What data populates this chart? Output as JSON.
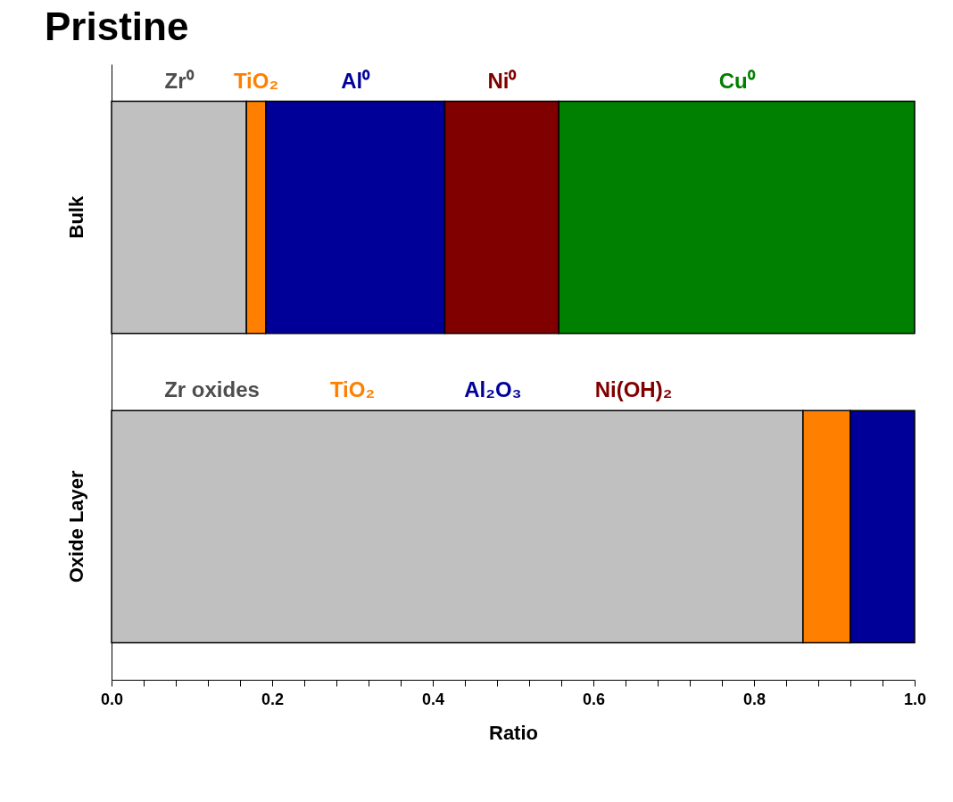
{
  "chart_data": {
    "type": "bar",
    "title": "Pristine",
    "xlabel": "Ratio",
    "orientation": "horizontal",
    "stacked": true,
    "categories": [
      "Bulk",
      "Oxide Layer"
    ],
    "series": [
      {
        "color": "#c0c0c0",
        "values": [
          0.168,
          0.861
        ]
      },
      {
        "color": "#ff8000",
        "values": [
          0.024,
          0.059
        ]
      },
      {
        "color": "#000099",
        "values": [
          0.223,
          0.08
        ]
      },
      {
        "color": "#800000",
        "values": [
          0.142,
          null
        ]
      },
      {
        "color": "#008000",
        "values": [
          0.443,
          null
        ]
      }
    ],
    "xlim": [
      0,
      1.0
    ],
    "xticks": [
      {
        "value": 0,
        "label": "0.0"
      },
      {
        "value": 0.04,
        "label": null
      },
      {
        "value": 0.08,
        "label": null
      },
      {
        "value": 0.12,
        "label": null
      },
      {
        "value": 0.16,
        "label": null
      },
      {
        "value": 0.2,
        "label": "0.2"
      },
      {
        "value": 0.24,
        "label": null
      },
      {
        "value": 0.28,
        "label": null
      },
      {
        "value": 0.32,
        "label": null
      },
      {
        "value": 0.36,
        "label": null
      },
      {
        "value": 0.4,
        "label": "0.4"
      },
      {
        "value": 0.44,
        "label": null
      },
      {
        "value": 0.48,
        "label": null
      },
      {
        "value": 0.52,
        "label": null
      },
      {
        "value": 0.56,
        "label": null
      },
      {
        "value": 0.6,
        "label": "0.6"
      },
      {
        "value": 0.64,
        "label": null
      },
      {
        "value": 0.68,
        "label": null
      },
      {
        "value": 0.72,
        "label": null
      },
      {
        "value": 0.76,
        "label": null
      },
      {
        "value": 0.8,
        "label": "0.8"
      },
      {
        "value": 0.84,
        "label": null
      },
      {
        "value": 0.88,
        "label": null
      },
      {
        "value": 0.92,
        "label": null
      },
      {
        "value": 0.96,
        "label": null
      },
      {
        "value": 1.0,
        "label": "1.0"
      }
    ],
    "annotations": [
      "Zr⁰",
      "TiO₂",
      "Al⁰",
      "Ni⁰",
      "Cu⁰",
      "Zr oxides",
      "TiO₂",
      "Al₂O₃",
      "Ni(OH)₂"
    ],
    "grid": false
  }
}
